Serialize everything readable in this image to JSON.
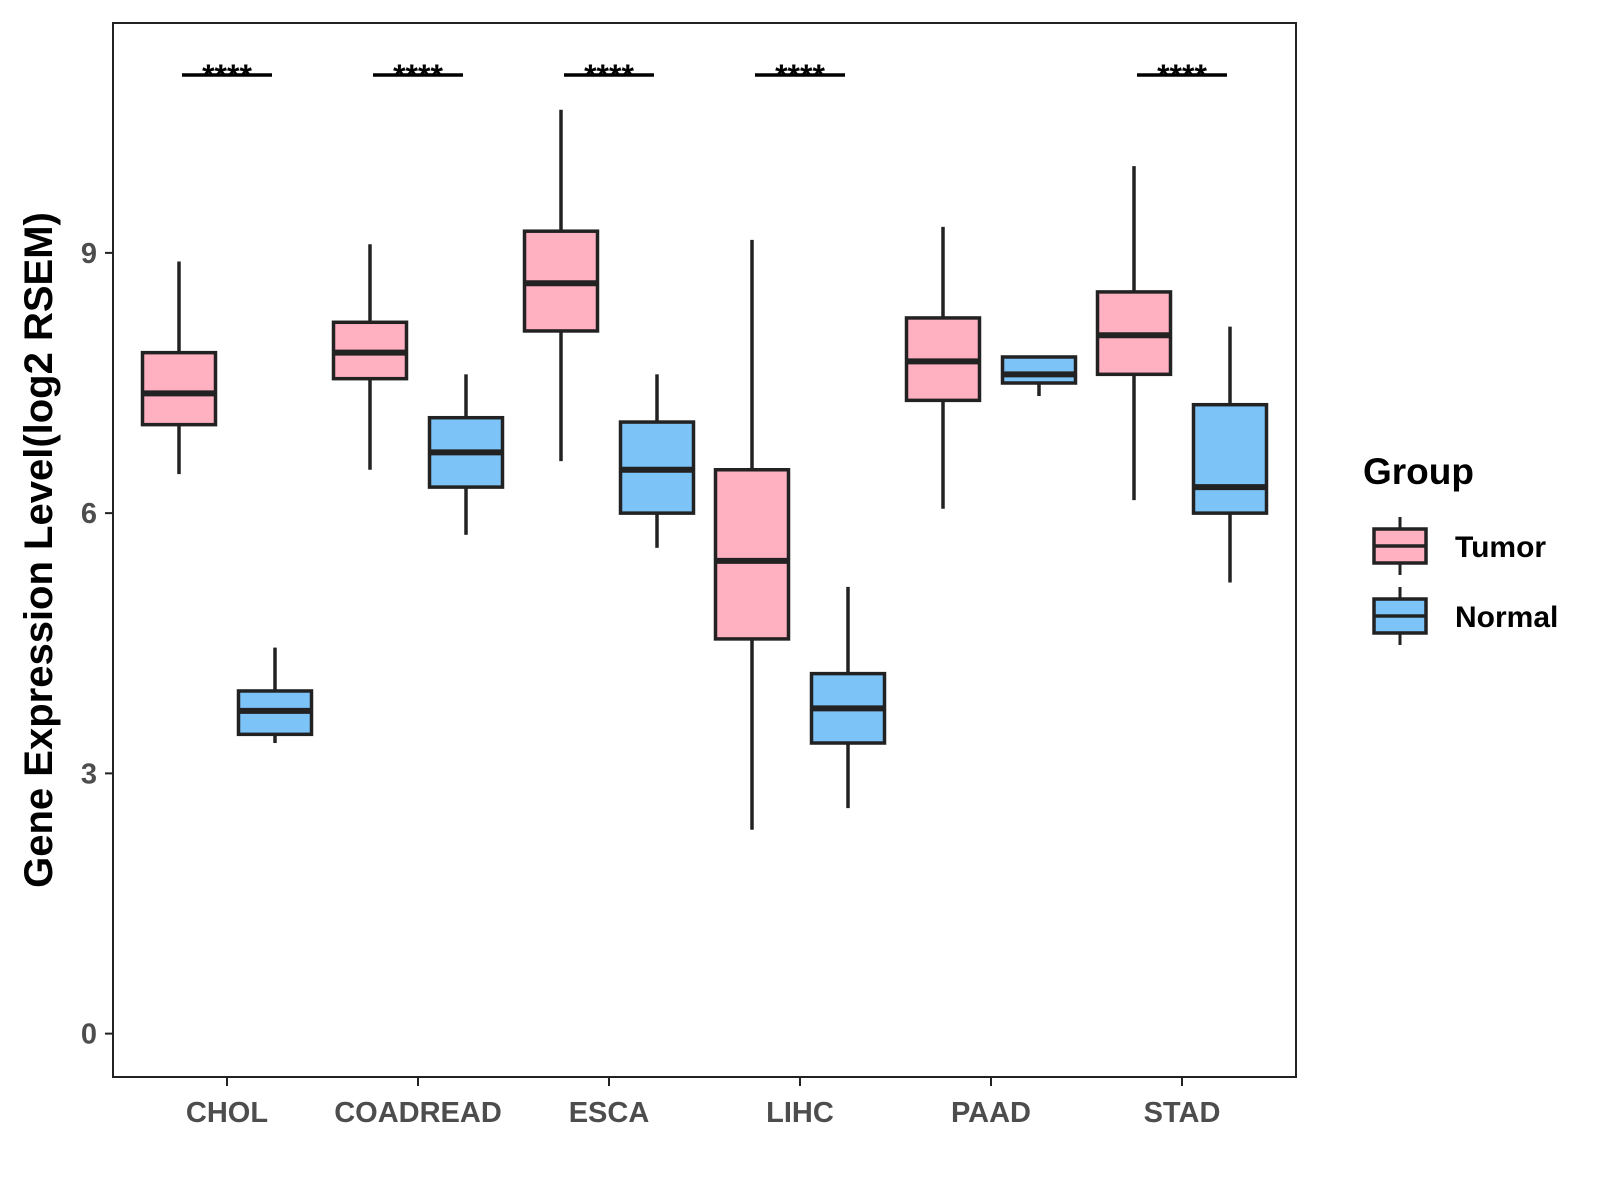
{
  "chart_data": {
    "type": "boxplot",
    "title": "",
    "xlabel": "",
    "ylabel": "Gene Expression Level(log2 RSEM)",
    "ylim": [
      -0.5,
      11.65
    ],
    "yticks": [
      0,
      3,
      6,
      9
    ],
    "categories": [
      "CHOL",
      "COADREAD",
      "ESCA",
      "LIHC",
      "PAAD",
      "STAD"
    ],
    "legend": {
      "title": "Group",
      "position": "right",
      "entries": [
        {
          "name": "Tumor",
          "color": "#FFB0C1"
        },
        {
          "name": "Normal",
          "color": "#7CC3F8"
        }
      ]
    },
    "series": [
      {
        "name": "Tumor",
        "color": "#FFB0C1",
        "boxes": [
          {
            "category": "CHOL",
            "min": 6.45,
            "q1": 7.02,
            "median": 7.38,
            "q3": 7.85,
            "max": 8.9
          },
          {
            "category": "COADREAD",
            "min": 6.5,
            "q1": 7.55,
            "median": 7.85,
            "q3": 8.2,
            "max": 9.1
          },
          {
            "category": "ESCA",
            "min": 6.6,
            "q1": 8.1,
            "median": 8.65,
            "q3": 9.25,
            "max": 10.65
          },
          {
            "category": "LIHC",
            "min": 2.35,
            "q1": 4.55,
            "median": 5.45,
            "q3": 6.5,
            "max": 9.15
          },
          {
            "category": "PAAD",
            "min": 6.05,
            "q1": 7.3,
            "median": 7.75,
            "q3": 8.25,
            "max": 9.3
          },
          {
            "category": "STAD",
            "min": 6.15,
            "q1": 7.6,
            "median": 8.05,
            "q3": 8.55,
            "max": 10.0
          }
        ]
      },
      {
        "name": "Normal",
        "color": "#7CC3F8",
        "boxes": [
          {
            "category": "CHOL",
            "min": 3.35,
            "q1": 3.45,
            "median": 3.72,
            "q3": 3.95,
            "max": 4.45
          },
          {
            "category": "COADREAD",
            "min": 5.75,
            "q1": 6.3,
            "median": 6.7,
            "q3": 7.1,
            "max": 7.6
          },
          {
            "category": "ESCA",
            "min": 5.6,
            "q1": 6.0,
            "median": 6.5,
            "q3": 7.05,
            "max": 7.6
          },
          {
            "category": "LIHC",
            "min": 2.6,
            "q1": 3.35,
            "median": 3.75,
            "q3": 4.15,
            "max": 5.15
          },
          {
            "category": "PAAD",
            "min": 7.35,
            "q1": 7.5,
            "median": 7.6,
            "q3": 7.8,
            "max": 7.8
          },
          {
            "category": "STAD",
            "min": 5.2,
            "q1": 6.0,
            "median": 6.3,
            "q3": 7.25,
            "max": 8.15
          }
        ]
      }
    ],
    "annotations": [
      {
        "category": "CHOL",
        "label": "****"
      },
      {
        "category": "COADREAD",
        "label": "****"
      },
      {
        "category": "ESCA",
        "label": "****"
      },
      {
        "category": "LIHC",
        "label": "****"
      },
      {
        "category": "STAD",
        "label": "****"
      }
    ]
  }
}
